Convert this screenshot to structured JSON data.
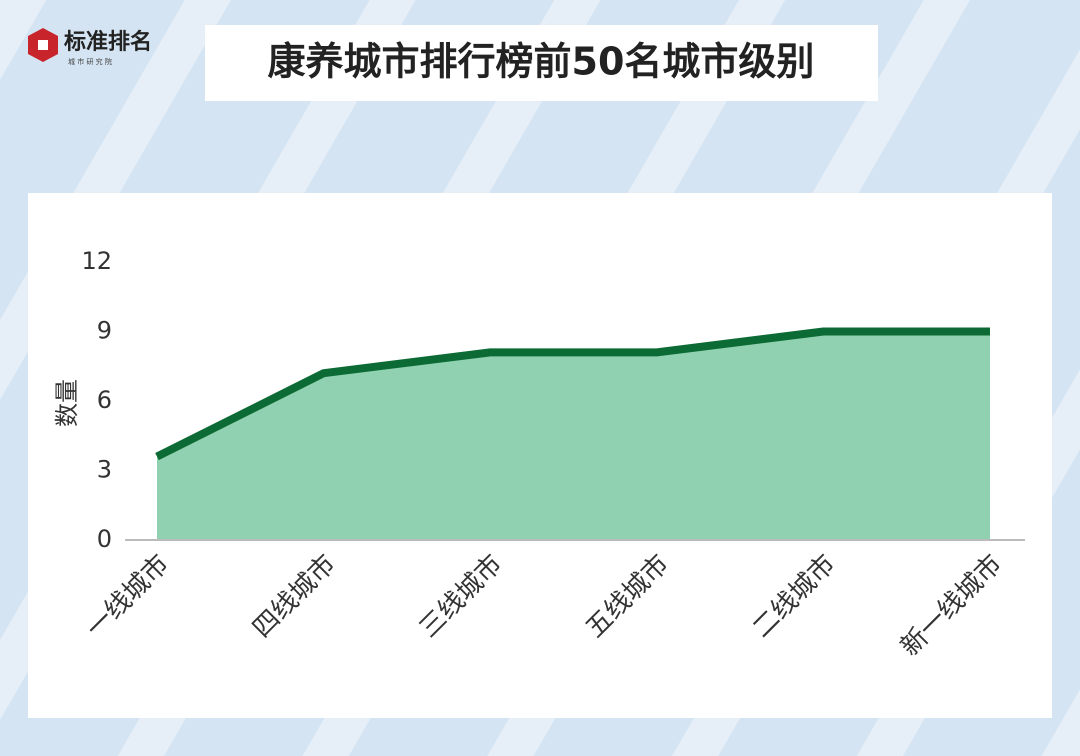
{
  "logo": {
    "name": "标准排名",
    "subtitle": "城 市 研 究 院"
  },
  "chart_data": {
    "type": "area",
    "title": "康养城市排行榜前50名城市级别",
    "y_label": "数量",
    "categories": [
      "一线城市",
      "四线城市",
      "三线城市",
      "五线城市",
      "二线城市",
      "新一线城市"
    ],
    "values": [
      3.6,
      7.2,
      8.1,
      8.1,
      9,
      9
    ],
    "line_color": "#0c6b34",
    "fill_color": "#8fd1b0",
    "ylim": [
      0,
      12
    ],
    "yticks": [
      0,
      3,
      6,
      9,
      12
    ],
    "grid": false
  }
}
